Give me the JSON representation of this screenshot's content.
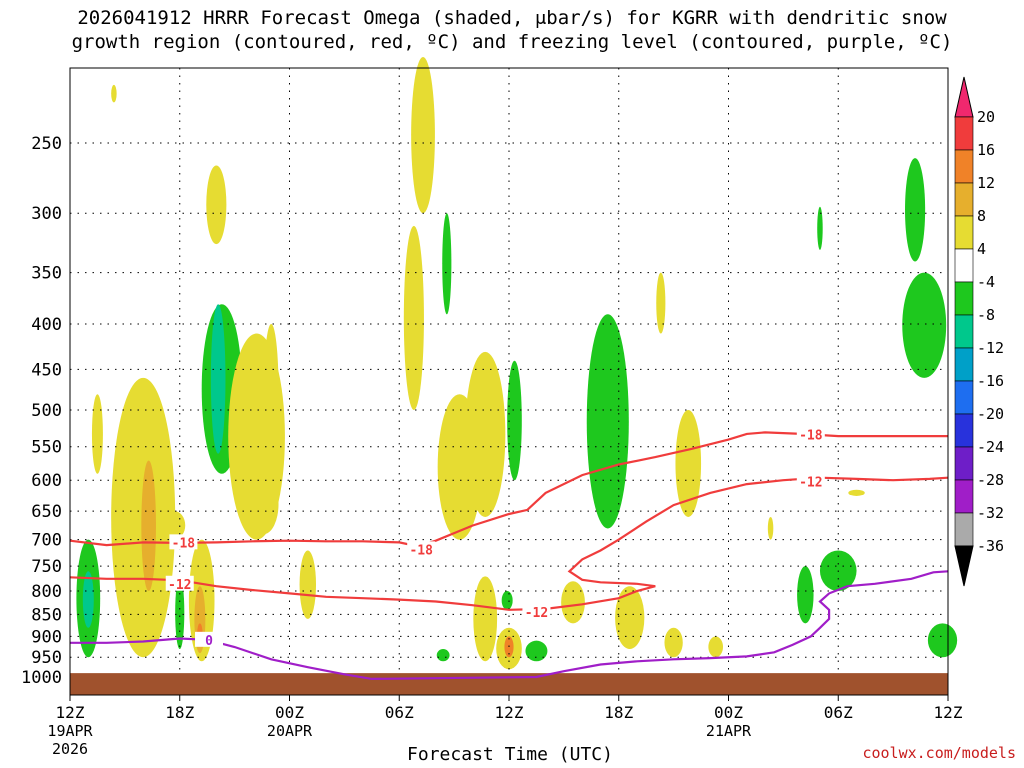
{
  "title_line1": "2026041912 HRRR Forecast Omega (shaded, μbar/s) for KGRR with dendritic snow",
  "title_line2": "growth region (contoured, red, ºC) and freezing level (contoured, purple, ºC)",
  "credit": "coolwx.com/models",
  "chart_data": {
    "type": "heatmap",
    "title": "2026041912 HRRR Forecast Omega (shaded, μbar/s) for KGRR with dendritic snow growth region (contoured, red, ºC) and freezing level (contoured, purple, ºC)",
    "xlabel": "Forecast Time (UTC)",
    "ylabel": "",
    "x_unit": "forecast hour",
    "x_range": [
      0,
      48
    ],
    "y_range": [
      1000,
      200
    ],
    "y_scale": "log",
    "grid": true,
    "x_ticks": [
      {
        "hour": 0,
        "label": "12Z",
        "sub": [
          "19APR",
          "2026"
        ]
      },
      {
        "hour": 6,
        "label": "18Z",
        "sub": []
      },
      {
        "hour": 12,
        "label": "00Z",
        "sub": [
          "20APR"
        ]
      },
      {
        "hour": 18,
        "label": "06Z",
        "sub": []
      },
      {
        "hour": 24,
        "label": "12Z",
        "sub": []
      },
      {
        "hour": 30,
        "label": "18Z",
        "sub": []
      },
      {
        "hour": 36,
        "label": "00Z",
        "sub": [
          "21APR"
        ]
      },
      {
        "hour": 42,
        "label": "06Z",
        "sub": []
      },
      {
        "hour": 48,
        "label": "12Z",
        "sub": []
      }
    ],
    "y_ticks": [
      250,
      300,
      350,
      400,
      450,
      500,
      550,
      600,
      650,
      700,
      750,
      800,
      850,
      900,
      950,
      1000
    ],
    "colorbar": {
      "labels": [
        "20",
        "16",
        "12",
        "8",
        "4",
        "-4",
        "-8",
        "-12",
        "-16",
        "-20",
        "-24",
        "-28",
        "-32",
        "-36"
      ],
      "colors": [
        "#f0286e",
        "#f03c3c",
        "#f08228",
        "#e6af2d",
        "#e6dc32",
        "#ffffff",
        "#1ec81e",
        "#00c88c",
        "#00a0c8",
        "#1e6ef0",
        "#2832dc",
        "#6e1ec8",
        "#a01ec8",
        "#aaaaaa",
        "#000000"
      ]
    },
    "colors": {
      "pos_weak": "#e6dc32",
      "pos_mod": "#e6af2d",
      "pos_strong": "#f08228",
      "neg_weak": "#1ec81e",
      "neg_mod": "#00c88c",
      "dgz_contour": "#f03c3c",
      "freezing_contour": "#a01ec8",
      "terrain": "#a0522d"
    },
    "series": [
      {
        "name": "-18",
        "kind": "dgz_contour",
        "points": [
          [
            0,
            702
          ],
          [
            2,
            710
          ],
          [
            4,
            705
          ],
          [
            6,
            706
          ],
          [
            8,
            705
          ],
          [
            10,
            703
          ],
          [
            12,
            702
          ],
          [
            14,
            703
          ],
          [
            16,
            703
          ],
          [
            18,
            705
          ],
          [
            19,
            712
          ],
          [
            20,
            702
          ],
          [
            22,
            675
          ],
          [
            24,
            655
          ],
          [
            25,
            648
          ],
          [
            26,
            620
          ],
          [
            28,
            592
          ],
          [
            30,
            576
          ],
          [
            32,
            565
          ],
          [
            34,
            553
          ],
          [
            36,
            540
          ],
          [
            37,
            532
          ],
          [
            38,
            530
          ],
          [
            40,
            532
          ],
          [
            42,
            535
          ],
          [
            44,
            535
          ],
          [
            46,
            535
          ],
          [
            48,
            535
          ]
        ],
        "labels": [
          {
            "hour": 6.2,
            "p": 705,
            "text": "-18"
          },
          {
            "hour": 19.2,
            "p": 718,
            "text": "-18"
          },
          {
            "hour": 40.5,
            "p": 533,
            "text": "-18"
          }
        ]
      },
      {
        "name": "-12",
        "kind": "dgz_contour",
        "points": [
          [
            0,
            772
          ],
          [
            2,
            775
          ],
          [
            4,
            775
          ],
          [
            6,
            778
          ],
          [
            8,
            790
          ],
          [
            10,
            798
          ],
          [
            12,
            805
          ],
          [
            14,
            812
          ],
          [
            16,
            815
          ],
          [
            18,
            818
          ],
          [
            20,
            822
          ],
          [
            22,
            830
          ],
          [
            24,
            840
          ],
          [
            26,
            838
          ],
          [
            28,
            828
          ],
          [
            30,
            815
          ],
          [
            31,
            800
          ],
          [
            32,
            790
          ],
          [
            31,
            785
          ],
          [
            29,
            782
          ],
          [
            28,
            777
          ],
          [
            27.3,
            760
          ],
          [
            28,
            737
          ],
          [
            29,
            720
          ],
          [
            30,
            700
          ],
          [
            31.5,
            668
          ],
          [
            33,
            640
          ],
          [
            35,
            620
          ],
          [
            37,
            606
          ],
          [
            39,
            600
          ],
          [
            41,
            596
          ],
          [
            43,
            598
          ],
          [
            45,
            600
          ],
          [
            47,
            598
          ],
          [
            48,
            596
          ]
        ],
        "labels": [
          {
            "hour": 6,
            "p": 785,
            "text": "-12"
          },
          {
            "hour": 25.5,
            "p": 845,
            "text": "-12"
          },
          {
            "hour": 40.5,
            "p": 602,
            "text": "-12"
          }
        ]
      },
      {
        "name": "0",
        "kind": "freezing_contour",
        "points": [
          [
            0,
            915
          ],
          [
            2,
            915
          ],
          [
            4,
            912
          ],
          [
            6,
            905
          ],
          [
            7.5,
            908
          ],
          [
            9,
            925
          ],
          [
            11,
            955
          ],
          [
            13,
            975
          ],
          [
            15,
            993
          ],
          [
            16.5,
            1005
          ],
          [
            25.5,
            1000
          ],
          [
            27,
            985
          ],
          [
            29,
            968
          ],
          [
            31,
            960
          ],
          [
            33,
            955
          ],
          [
            35,
            952
          ],
          [
            37,
            948
          ],
          [
            38.5,
            938
          ],
          [
            39.5,
            920
          ],
          [
            40.5,
            900
          ],
          [
            41,
            880
          ],
          [
            41.5,
            860
          ],
          [
            41.5,
            840
          ],
          [
            41,
            822
          ],
          [
            41.5,
            805
          ],
          [
            42.5,
            790
          ],
          [
            44,
            785
          ],
          [
            46,
            775
          ],
          [
            47.2,
            762
          ],
          [
            48,
            760
          ]
        ],
        "labels": [
          {
            "hour": 7.6,
            "p": 908,
            "text": "0"
          }
        ]
      }
    ]
  }
}
